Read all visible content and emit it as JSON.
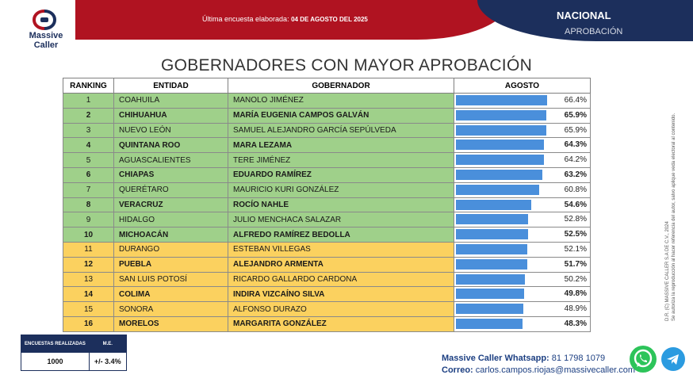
{
  "header": {
    "survey_prefix": "Última encuesta elaborada:",
    "survey_date": "04 DE AGOSTO DEL 2025",
    "scope": "NACIONAL",
    "metric": "APROBACIÓN"
  },
  "logo": {
    "name_line1": "Massive",
    "name_line2": "Caller"
  },
  "title": "GOBERNADORES CON MAYOR APROBACIÓN",
  "table": {
    "headers": [
      "RANKING",
      "ENTIDAD",
      "GOBERNADOR",
      "AGOSTO"
    ],
    "rows": [
      {
        "rank": "1",
        "entidad": "COAHUILA",
        "gobernador": "MANOLO JIMÉNEZ",
        "value_label": "66.4%",
        "value": 66.4,
        "color": "green",
        "bold": false
      },
      {
        "rank": "2",
        "entidad": "CHIHUAHUA",
        "gobernador": "MARÍA EUGENIA CAMPOS GALVÁN",
        "value_label": "65.9%",
        "value": 65.9,
        "color": "green",
        "bold": true
      },
      {
        "rank": "3",
        "entidad": "NUEVO LEÓN",
        "gobernador": "SAMUEL ALEJANDRO GARCÍA SEPÚLVEDA",
        "value_label": "65.9%",
        "value": 65.9,
        "color": "green",
        "bold": false
      },
      {
        "rank": "4",
        "entidad": "QUINTANA ROO",
        "gobernador": "MARA LEZAMA",
        "value_label": "64.3%",
        "value": 64.3,
        "color": "green",
        "bold": true
      },
      {
        "rank": "5",
        "entidad": "AGUASCALIENTES",
        "gobernador": "TERE JIMÉNEZ",
        "value_label": "64.2%",
        "value": 64.2,
        "color": "green",
        "bold": false
      },
      {
        "rank": "6",
        "entidad": "CHIAPAS",
        "gobernador": "EDUARDO RAMÍREZ",
        "value_label": "63.2%",
        "value": 63.2,
        "color": "green",
        "bold": true
      },
      {
        "rank": "7",
        "entidad": "QUERÉTARO",
        "gobernador": "MAURICIO KURI GONZÁLEZ",
        "value_label": "60.8%",
        "value": 60.8,
        "color": "green",
        "bold": false
      },
      {
        "rank": "8",
        "entidad": "VERACRUZ",
        "gobernador": "ROCÍO NAHLE",
        "value_label": "54.6%",
        "value": 54.6,
        "color": "green",
        "bold": true
      },
      {
        "rank": "9",
        "entidad": "HIDALGO",
        "gobernador": "JULIO MENCHACA SALAZAR",
        "value_label": "52.8%",
        "value": 52.8,
        "color": "green",
        "bold": false
      },
      {
        "rank": "10",
        "entidad": "MICHOACÁN",
        "gobernador": "ALFREDO RAMÍREZ BEDOLLA",
        "value_label": "52.5%",
        "value": 52.5,
        "color": "green",
        "bold": true
      },
      {
        "rank": "11",
        "entidad": "DURANGO",
        "gobernador": "ESTEBAN VILLEGAS",
        "value_label": "52.1%",
        "value": 52.1,
        "color": "yellow",
        "bold": false
      },
      {
        "rank": "12",
        "entidad": "PUEBLA",
        "gobernador": "ALEJANDRO ARMENTA",
        "value_label": "51.7%",
        "value": 51.7,
        "color": "yellow",
        "bold": true
      },
      {
        "rank": "13",
        "entidad": "SAN LUIS POTOSÍ",
        "gobernador": "RICARDO GALLARDO CARDONA",
        "value_label": "50.2%",
        "value": 50.2,
        "color": "yellow",
        "bold": false
      },
      {
        "rank": "14",
        "entidad": "COLIMA",
        "gobernador": "INDIRA VIZCAÍNO SILVA",
        "value_label": "49.8%",
        "value": 49.8,
        "color": "yellow",
        "bold": true
      },
      {
        "rank": "15",
        "entidad": "SONORA",
        "gobernador": "ALFONSO DURAZO",
        "value_label": "48.9%",
        "value": 48.9,
        "color": "yellow",
        "bold": false
      },
      {
        "rank": "16",
        "entidad": "MORELOS",
        "gobernador": "MARGARITA GONZÁLEZ",
        "value_label": "48.3%",
        "value": 48.3,
        "color": "yellow",
        "bold": true
      }
    ]
  },
  "survey_info": {
    "header_surveys": "ENCUESTAS REALIZADAS",
    "header_me": "M.E.",
    "surveys": "1000",
    "me": "+/- 3.4%"
  },
  "side_text": {
    "line1": "D.R. (C) MASSIVE CALLER S.A DE C.V., 2024",
    "line2": "Se autoriza la reproducción al hacer referencia del autor, salvo aplique veda electoral al contenido."
  },
  "contact": {
    "whatsapp_label": "Massive Caller Whatsapp:",
    "whatsapp_number": "81 1798 1079",
    "email_label": "Correo:",
    "email": "carlos.campos.riojas@massivecaller.com"
  },
  "colors": {
    "green": "#9fd08a",
    "yellow": "#fbd15f",
    "bar": "#4a8fdb",
    "red": "#b01321",
    "navy": "#1c2f5c"
  }
}
